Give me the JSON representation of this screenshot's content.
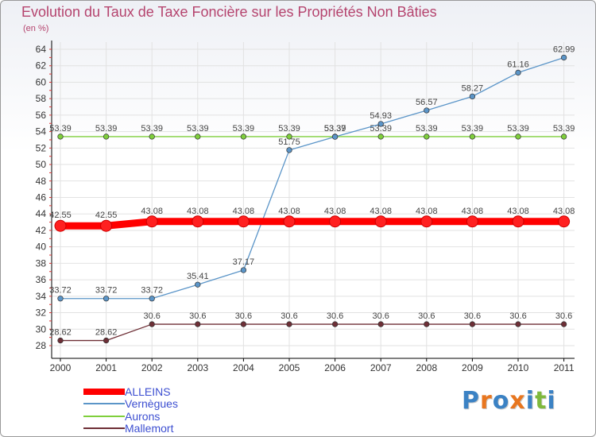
{
  "chart_data": {
    "type": "line",
    "title": "Evolution du Taux de Taxe Foncière sur les Propriétés Non Bâties",
    "ylabel": "(en %)",
    "xlabel": "",
    "x": [
      "2000",
      "2001",
      "2002",
      "2003",
      "2004",
      "2005",
      "2006",
      "2007",
      "2008",
      "2009",
      "2010",
      "2011"
    ],
    "yticks": [
      28,
      30,
      32,
      34,
      36,
      38,
      40,
      42,
      44,
      46,
      48,
      50,
      52,
      54,
      56,
      58,
      60,
      62,
      64
    ],
    "ylim": [
      28,
      64
    ],
    "series": [
      {
        "name": "Mallemort",
        "color": "#6e2f36",
        "thick": false,
        "values": [
          28.62,
          28.62,
          30.6,
          30.6,
          30.6,
          30.6,
          30.6,
          30.6,
          30.6,
          30.6,
          30.6,
          30.6
        ],
        "labels": [
          "28.62",
          "28.62",
          "30.6",
          "30.6",
          "30.6",
          "30.6",
          "30.6",
          "30.6",
          "30.6",
          "30.6",
          "30.6",
          "30.6"
        ]
      },
      {
        "name": "Aurons",
        "color": "#7fcf3c",
        "thick": false,
        "values": [
          53.39,
          53.39,
          53.39,
          53.39,
          53.39,
          53.39,
          53.39,
          53.39,
          53.39,
          53.39,
          53.39,
          53.39
        ],
        "labels": [
          "53.39",
          "53.39",
          "53.39",
          "53.39",
          "53.39",
          "53.39",
          "53.39",
          "53.39",
          "53.39",
          "53.39",
          "53.39",
          "53.39"
        ]
      },
      {
        "name": "Vernègues",
        "color": "#5b95c8",
        "thick": false,
        "values": [
          33.72,
          33.72,
          33.72,
          35.41,
          37.17,
          51.75,
          53.37,
          54.93,
          56.57,
          58.27,
          61.16,
          62.99
        ],
        "labels": [
          "33.72",
          "33.72",
          "33.72",
          "35.41",
          "37.17",
          "51.75",
          "53.37",
          "54.93",
          "56.57",
          "58.27",
          "61.16",
          "62.99"
        ]
      },
      {
        "name": "ALLEINS",
        "color": "#ff0000",
        "thick": true,
        "values": [
          42.55,
          42.55,
          43.08,
          43.08,
          43.08,
          43.08,
          43.08,
          43.08,
          43.08,
          43.08,
          43.08,
          43.08
        ],
        "labels": [
          "42.55",
          "42.55",
          "43.08",
          "43.08",
          "43.08",
          "43.08",
          "43.08",
          "43.08",
          "43.08",
          "43.08",
          "43.08",
          "43.08"
        ]
      }
    ],
    "legend": [
      "ALLEINS",
      "Vernègues",
      "Aurons",
      "Mallemort"
    ],
    "legend_colors": [
      "#ff0000",
      "#5b95c8",
      "#7fcf3c",
      "#6e2f36"
    ]
  },
  "logo": {
    "letters": [
      "P",
      "r",
      "o",
      "x",
      "i",
      "t",
      "i"
    ],
    "colors": [
      "#3b82c4",
      "#e8761f",
      "#3b82c4",
      "#e8761f",
      "#3b82c4",
      "#7fb93c",
      "#3b82c4"
    ]
  }
}
